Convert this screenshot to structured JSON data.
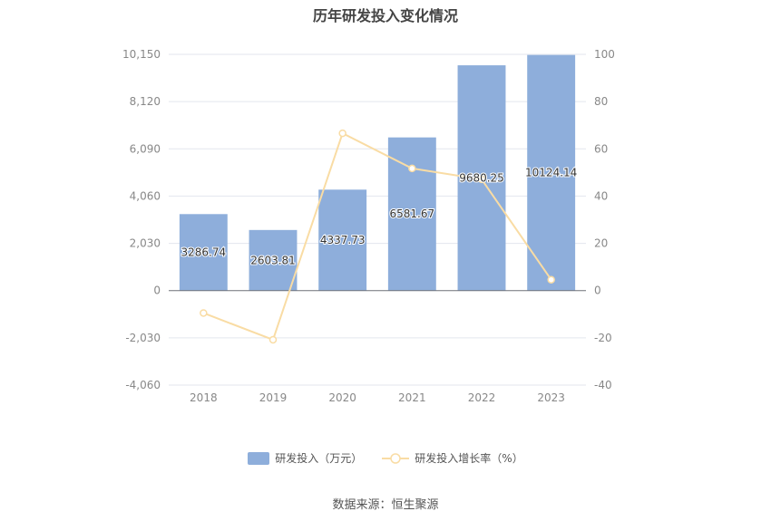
{
  "title": "历年研发投入变化情况",
  "source": "数据来源：恒生聚源",
  "colors": {
    "bar": "#8eaedb",
    "line": "#f9dca4",
    "grid": "#e3e6ee",
    "axis": "#888888"
  },
  "legend": [
    {
      "label": "研发投入（万元）",
      "kind": "bar"
    },
    {
      "label": "研发投入增长率（%）",
      "kind": "line"
    }
  ],
  "chart_data": {
    "type": "bar",
    "categories": [
      "2018",
      "2019",
      "2020",
      "2021",
      "2022",
      "2023"
    ],
    "series": [
      {
        "name": "研发投入（万元）",
        "type": "bar",
        "axis": "left",
        "values": [
          3286.74,
          2603.81,
          4337.73,
          6581.67,
          9680.25,
          10124.14
        ],
        "labels": [
          "3286.74",
          "2603.81",
          "4337.73",
          "6581.67",
          "9680.25",
          "10124.14"
        ]
      },
      {
        "name": "研发投入增长率（%）",
        "type": "line",
        "axis": "right",
        "values": [
          -9.5,
          -20.8,
          66.6,
          51.7,
          47.1,
          4.6
        ]
      }
    ],
    "y_left": {
      "ticks": [
        10150,
        8120,
        6090,
        4060,
        2030,
        0,
        -2030,
        -4060
      ],
      "tick_labels": [
        "10,150",
        "8,120",
        "6,090",
        "4,060",
        "2,030",
        "0",
        "-2,030",
        "-4,060"
      ],
      "range": [
        -4060,
        10150
      ]
    },
    "y_right": {
      "ticks": [
        100,
        80,
        60,
        40,
        20,
        0,
        -20,
        -40
      ],
      "tick_labels": [
        "100",
        "80",
        "60",
        "40",
        "20",
        "0",
        "-20",
        "-40"
      ],
      "range": [
        -40,
        100
      ]
    },
    "grid": true,
    "legend_position": "bottom"
  }
}
